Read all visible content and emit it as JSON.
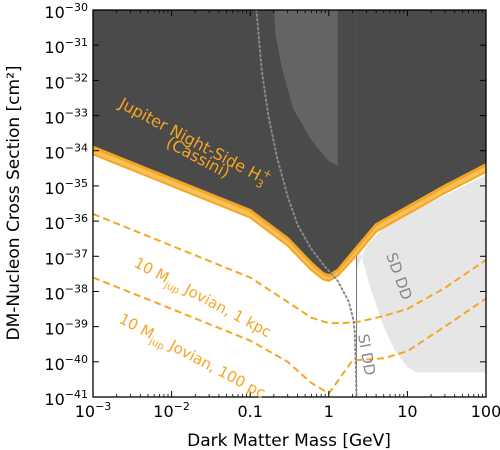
{
  "chart_data": {
    "type": "line",
    "xscale": "log",
    "yscale": "log",
    "xlim": [
      0.001,
      100
    ],
    "ylim": [
      1e-41,
      1e-30
    ],
    "xlabel": "Dark Matter Mass [GeV]",
    "ylabel": "DM-Nucleon Cross Section [cm²]",
    "grid": false,
    "x_ticks": [
      {
        "value": 0.001,
        "base": "10",
        "exp": "−3"
      },
      {
        "value": 0.01,
        "base": "10",
        "exp": "−2"
      },
      {
        "value": 0.1,
        "text": "0.1"
      },
      {
        "value": 1,
        "text": "1"
      },
      {
        "value": 10,
        "text": "10"
      },
      {
        "value": 100,
        "text": "100"
      }
    ],
    "y_ticks": [
      {
        "value": 1e-41,
        "base": "10",
        "exp": "−41"
      },
      {
        "value": 1e-40,
        "base": "10",
        "exp": "−40"
      },
      {
        "value": 1e-39,
        "base": "10",
        "exp": "−39"
      },
      {
        "value": 1e-38,
        "base": "10",
        "exp": "−38"
      },
      {
        "value": 1e-37,
        "base": "10",
        "exp": "−37"
      },
      {
        "value": 1e-36,
        "base": "10",
        "exp": "−36"
      },
      {
        "value": 1e-35,
        "base": "10",
        "exp": "−35"
      },
      {
        "value": 1e-34,
        "base": "10",
        "exp": "−34"
      },
      {
        "value": 1e-33,
        "base": "10",
        "exp": "−33"
      },
      {
        "value": 1e-32,
        "base": "10",
        "exp": "−32"
      },
      {
        "value": 1e-31,
        "base": "10",
        "exp": "−31"
      },
      {
        "value": 1e-30,
        "base": "10",
        "exp": "−30"
      }
    ],
    "colors": {
      "jupiter_fill": "#4a4a4a",
      "other_exclusion": "#646464",
      "sd_dd": "#e6e6e6",
      "orange": "#f5a623",
      "orange_band": "#fbc15a",
      "dotted": "#8a8a8a"
    },
    "regions": {
      "jupiter_upper": [
        [
          0.001,
          1.26e-34
        ],
        [
          0.01,
          1.58e-35
        ],
        [
          0.1,
          2e-36
        ],
        [
          0.3,
          3.2e-37
        ],
        [
          0.6,
          6.3e-38
        ],
        [
          0.85,
          3.2e-38
        ],
        [
          1.0,
          2.8e-38
        ],
        [
          1.3,
          4e-38
        ],
        [
          2.0,
          1.26e-37
        ],
        [
          4.0,
          7.9e-37
        ],
        [
          10,
          2.5e-36
        ],
        [
          30,
          1e-35
        ],
        [
          100,
          4e-35
        ]
      ],
      "jupiter_lower": [
        [
          0.001,
          7.9e-35
        ],
        [
          0.01,
          1e-35
        ],
        [
          0.1,
          1.26e-36
        ],
        [
          0.3,
          2e-37
        ],
        [
          0.6,
          4e-38
        ],
        [
          0.85,
          2.2e-38
        ],
        [
          1.0,
          2e-38
        ],
        [
          1.3,
          2.8e-38
        ],
        [
          2.0,
          7.9e-38
        ],
        [
          4.0,
          5e-37
        ],
        [
          10,
          1.58e-36
        ],
        [
          30,
          6.3e-36
        ],
        [
          100,
          2.5e-35
        ]
      ],
      "other_exclusion": [
        [
          0.2,
          1e-30
        ],
        [
          0.21,
          2e-31
        ],
        [
          0.25,
          2.5e-32
        ],
        [
          0.35,
          1.6e-33
        ],
        [
          0.6,
          2e-34
        ],
        [
          1.0,
          5e-35
        ],
        [
          1.5,
          3.2e-35
        ],
        [
          2.2,
          3.2e-35
        ],
        [
          2.3,
          1e-30
        ]
      ],
      "sd_dd_region": [
        [
          2.25,
          1e-30
        ],
        [
          2.25,
          4e-37
        ],
        [
          2.6,
          1e-37
        ],
        [
          3.5,
          1e-38
        ],
        [
          5.0,
          1e-39
        ],
        [
          7.0,
          2e-40
        ],
        [
          10,
          7e-41
        ],
        [
          13,
          5e-41
        ],
        [
          100,
          5e-41
        ],
        [
          100,
          2e-35
        ],
        [
          10,
          1.6e-36
        ],
        [
          5,
          6.3e-37
        ],
        [
          3.0,
          2e-37
        ],
        [
          2.25,
          4e-38
        ]
      ],
      "si_dd_vertical": [
        [
          2.25,
          1e-30
        ],
        [
          2.25,
          1e-41
        ]
      ]
    },
    "series": [
      {
        "name": "10 M_jup Jovian, 1 kpc",
        "style": "dashed",
        "points": [
          [
            0.001,
            1.6e-36
          ],
          [
            0.01,
            2e-37
          ],
          [
            0.1,
            2.5e-38
          ],
          [
            0.3,
            5e-39
          ],
          [
            0.6,
            1.8e-39
          ],
          [
            1.0,
            1.26e-39
          ],
          [
            1.5,
            1.26e-39
          ],
          [
            2.5,
            1.4e-39
          ],
          [
            5,
            2e-39
          ],
          [
            10,
            3.2e-39
          ],
          [
            30,
            1.26e-38
          ],
          [
            100,
            7.9e-38
          ]
        ]
      },
      {
        "name": "10 M_jup Jovian, 100 pc",
        "style": "dashed",
        "points": [
          [
            0.001,
            2.5e-38
          ],
          [
            0.01,
            3.2e-39
          ],
          [
            0.1,
            4e-40
          ],
          [
            0.3,
            1e-40
          ],
          [
            0.6,
            2.5e-41
          ],
          [
            1.0,
            1.26e-41
          ],
          [
            2.0,
            1.1e-40
          ],
          [
            5,
            1.26e-40
          ],
          [
            10,
            2e-40
          ],
          [
            30,
            1e-39
          ],
          [
            100,
            6.3e-39
          ]
        ]
      },
      {
        "name": "SI DD limit",
        "style": "dotted",
        "points": [
          [
            0.12,
            1e-30
          ],
          [
            0.14,
            2e-32
          ],
          [
            0.17,
            1e-33
          ],
          [
            0.22,
            6.3e-35
          ],
          [
            0.3,
            5e-36
          ],
          [
            0.4,
            7.9e-37
          ],
          [
            0.6,
            1.6e-37
          ],
          [
            0.9,
            5e-38
          ],
          [
            1.3,
            2e-38
          ],
          [
            1.8,
            5e-39
          ],
          [
            2.05,
            1.6e-39
          ],
          [
            2.15,
            6.3e-40
          ],
          [
            2.2,
            1e-40
          ],
          [
            2.25,
            1e-41
          ]
        ]
      }
    ],
    "annotations": {
      "jupiter_line1": "Jupiter Night-Side H",
      "jupiter_sub": "3",
      "jupiter_sup": "+",
      "jupiter_line2": "(Cassini)",
      "kpc_pre": "10 M",
      "kpc_sub": "jup",
      "kpc_post": " Jovian, 1 kpc",
      "pc_pre": "10 M",
      "pc_sub": "jup",
      "pc_post": " Jovian, 100 pc",
      "sd_dd": "SD DD",
      "si_dd": "SI DD"
    }
  }
}
